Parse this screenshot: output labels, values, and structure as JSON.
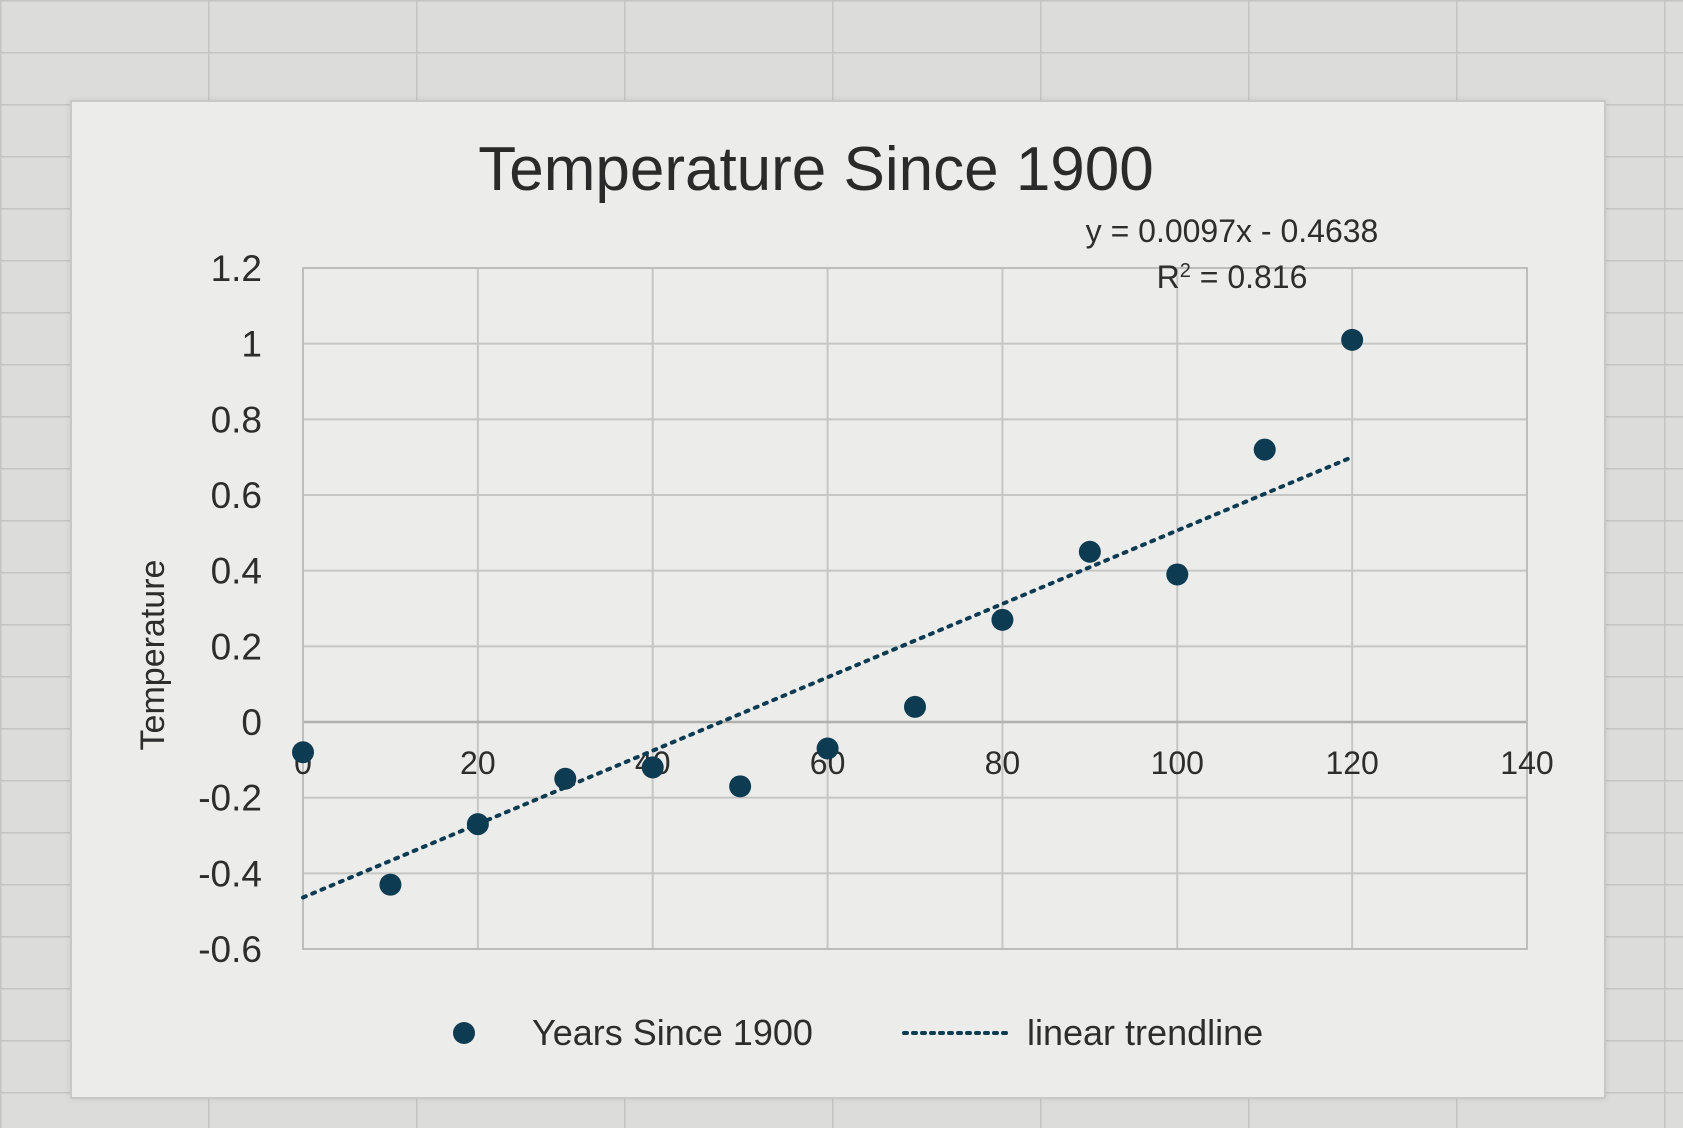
{
  "chart_data": {
    "type": "scatter",
    "title": "Temperature Since 1900",
    "xlabel": "",
    "ylabel": "Temperature",
    "xlim": [
      0,
      140
    ],
    "ylim": [
      -0.6,
      1.2
    ],
    "xticks": [
      0,
      20,
      40,
      60,
      80,
      100,
      120,
      140
    ],
    "yticks": [
      1.2,
      1,
      0.8,
      0.6,
      0.4,
      0.2,
      0,
      -0.2,
      -0.4,
      -0.6
    ],
    "grid": true,
    "legend_position": "bottom",
    "series": [
      {
        "name": "Years Since 1900",
        "x": [
          0,
          10,
          20,
          30,
          40,
          50,
          60,
          70,
          80,
          90,
          100,
          110,
          120
        ],
        "y": [
          -0.08,
          -0.43,
          -0.27,
          -0.15,
          -0.12,
          -0.17,
          -0.07,
          0.04,
          0.27,
          0.45,
          0.39,
          0.72,
          1.01
        ],
        "color": "#0d3b52"
      }
    ],
    "trendline": {
      "name": "linear trendline",
      "slope": 0.0097,
      "intercept": -0.4638,
      "style": "dotted",
      "equation": "y = 0.0097x - 0.4638",
      "r_squared_label": "R",
      "r_squared_sup": "2",
      "r_squared_value": " = 0.816"
    }
  }
}
